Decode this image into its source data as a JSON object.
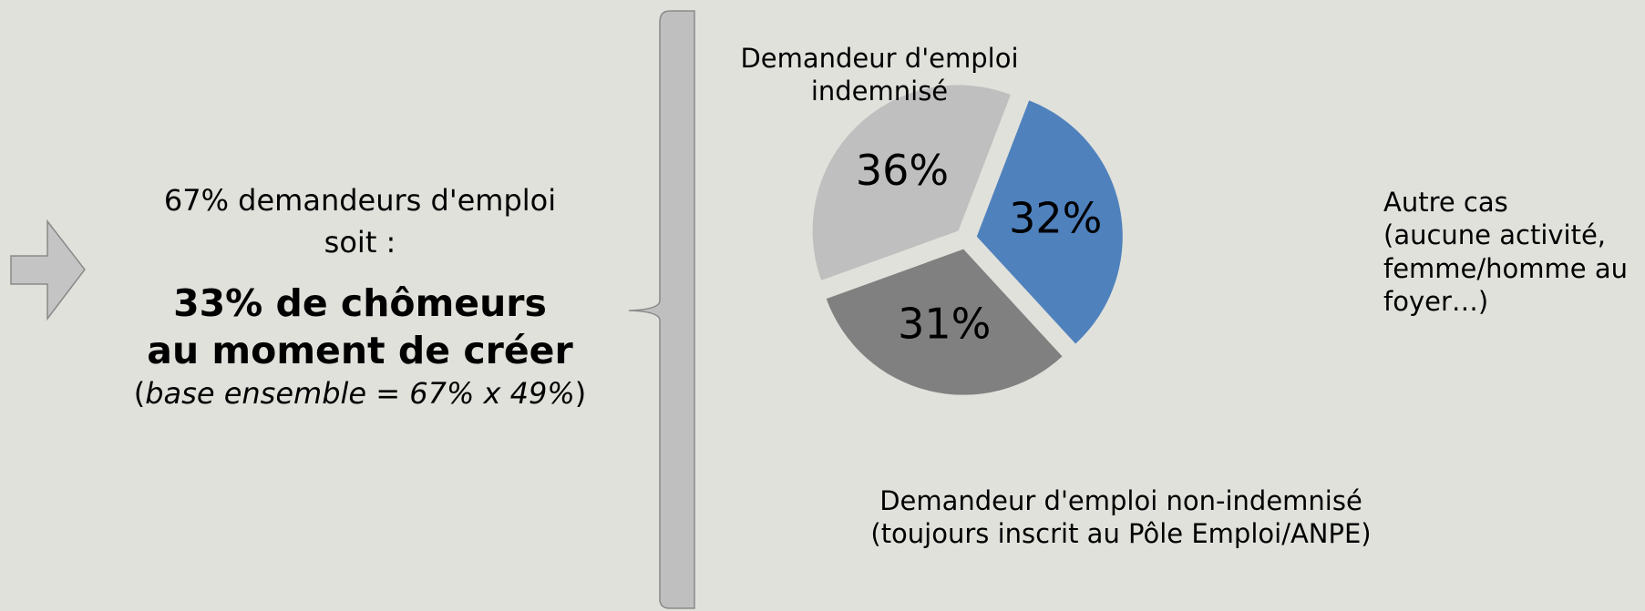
{
  "callout": {
    "line1": "67% demandeurs d'emploi",
    "line2": "soit :",
    "bold1": "33% de chômeurs",
    "bold2": "au moment de créer",
    "note_open": "(",
    "note": "base ensemble = 67% x 49%",
    "note_close": ")"
  },
  "chart_data": {
    "type": "pie",
    "categories": [
      "Autre cas\n(aucune activité,\nfemme/homme au\nfoyer…)",
      "Demandeur d'emploi non-indemnisé\n(toujours inscrit au Pôle Emploi/ANPE)",
      "Demandeur d'emploi\nindemnisé"
    ],
    "values": [
      32,
      31,
      36
    ],
    "value_labels": [
      "32%",
      "31%",
      "36%"
    ],
    "colors": [
      "#4f81bd",
      "#808080",
      "#bfbfbf"
    ],
    "start_angle": 21,
    "exploded": true
  }
}
